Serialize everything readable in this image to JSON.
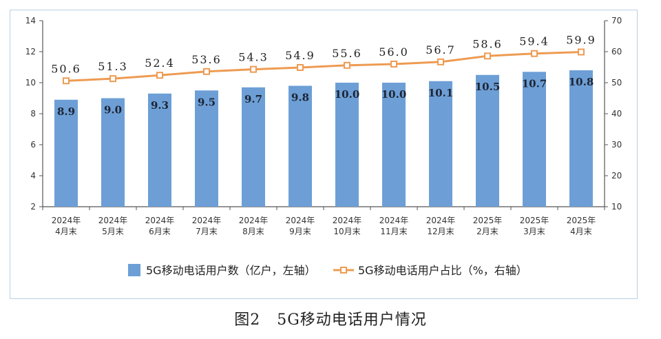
{
  "caption": {
    "figure_no": "图2",
    "title": "5G移动电话用户情况"
  },
  "chart_data": {
    "type": "bar",
    "categories": [
      [
        "2024年",
        "4月末"
      ],
      [
        "2024年",
        "5月末"
      ],
      [
        "2024年",
        "6月末"
      ],
      [
        "2024年",
        "7月末"
      ],
      [
        "2024年",
        "8月末"
      ],
      [
        "2024年",
        "9月末"
      ],
      [
        "2024年",
        "10月末"
      ],
      [
        "2024年",
        "11月末"
      ],
      [
        "2024年",
        "12月末"
      ],
      [
        "2025年",
        "2月末"
      ],
      [
        "2025年",
        "3月末"
      ],
      [
        "2025年",
        "4月末"
      ]
    ],
    "series": [
      {
        "name": "5G移动电话用户数（亿户，左轴）",
        "type": "bar",
        "axis": "left",
        "color": "#6d9fd6",
        "values": [
          8.9,
          9.0,
          9.3,
          9.5,
          9.7,
          9.8,
          10.0,
          10.0,
          10.1,
          10.5,
          10.7,
          10.8
        ],
        "labels": [
          "8.9",
          "9.0",
          "9.3",
          "9.5",
          "9.7",
          "9.8",
          "10.0",
          "10.0",
          "10.1",
          "10.5",
          "10.7",
          "10.8"
        ]
      },
      {
        "name": "5G移动电话用户占比（%，右轴）",
        "type": "line",
        "axis": "right",
        "color": "#ee9b52",
        "values": [
          50.6,
          51.3,
          52.4,
          53.6,
          54.3,
          54.9,
          55.6,
          56.0,
          56.7,
          58.6,
          59.4,
          59.9
        ],
        "labels": [
          "50.6",
          "51.3",
          "52.4",
          "53.6",
          "54.3",
          "54.9",
          "55.6",
          "56.0",
          "56.7",
          "58.6",
          "59.4",
          "59.9"
        ]
      }
    ],
    "y_left": {
      "range": [
        2,
        14
      ],
      "ticks": [
        "2",
        "4",
        "6",
        "8",
        "10",
        "12",
        "14"
      ]
    },
    "y_right": {
      "range": [
        10,
        70
      ],
      "ticks": [
        "10",
        "20",
        "30",
        "40",
        "50",
        "60",
        "70"
      ]
    },
    "grid": false,
    "legend_position": "bottom"
  }
}
